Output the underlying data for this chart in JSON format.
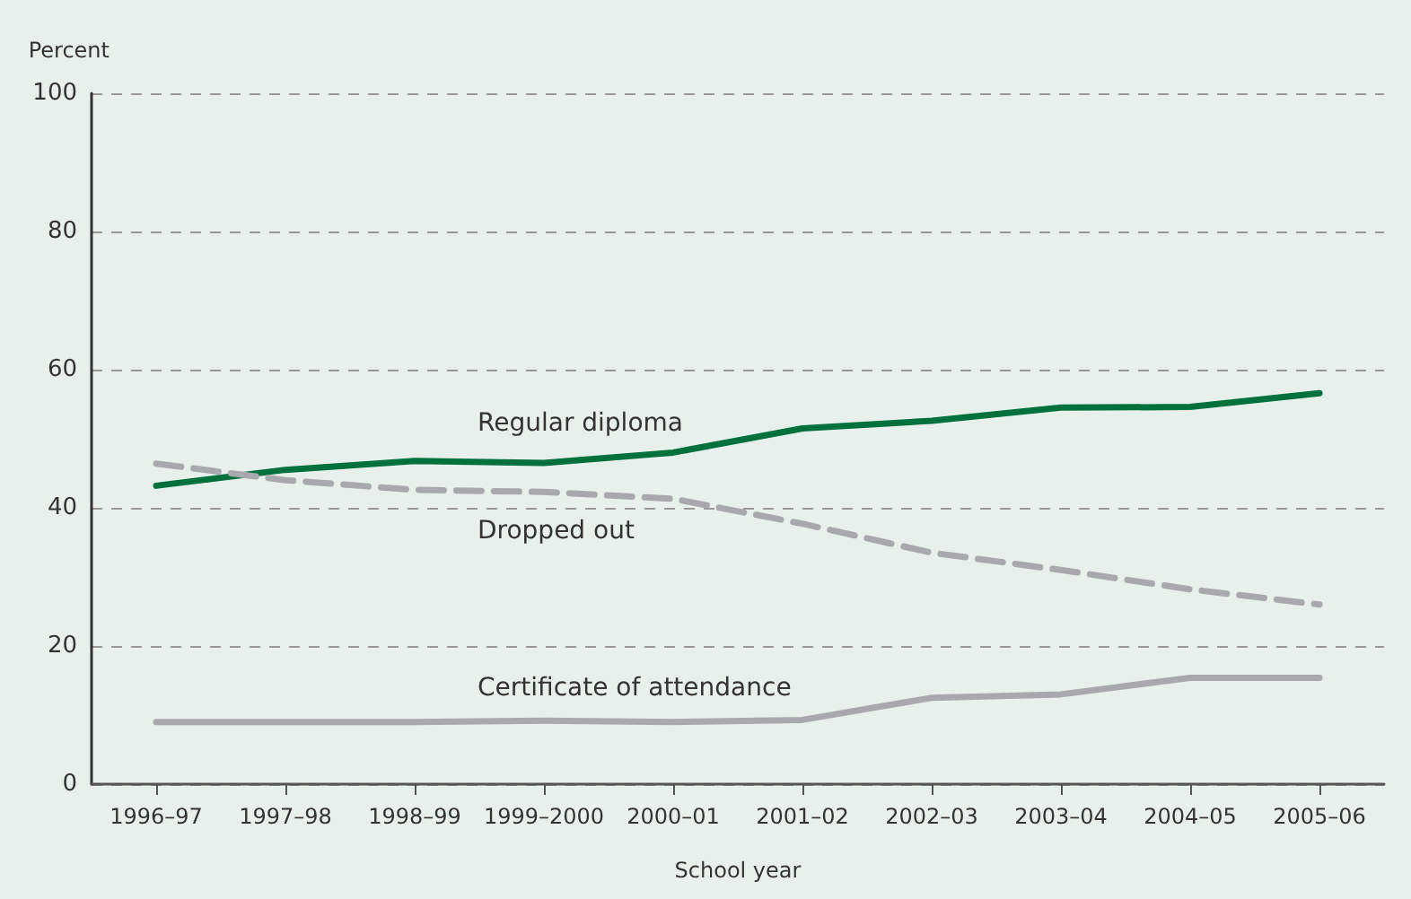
{
  "chart_data": {
    "type": "line",
    "ylabel": "Percent",
    "xlabel": "School year",
    "categories": [
      "1996–97",
      "1997–98",
      "1998–99",
      "1999–2000",
      "2000–01",
      "2001–02",
      "2002–03",
      "2003–04",
      "2004–05",
      "2005–06"
    ],
    "series": [
      {
        "name": "Regular diploma",
        "color": "#00703c",
        "line_style": "solid",
        "values": [
          43.2,
          45.5,
          46.8,
          46.5,
          48,
          51.5,
          52.6,
          54.5,
          54.6,
          56.6
        ]
      },
      {
        "name": "Dropped out",
        "color": "#a7a9ac",
        "line_style": "dashed",
        "values": [
          46.4,
          44,
          42.6,
          42.3,
          41.3,
          37.7,
          33.5,
          31,
          28.2,
          26
        ]
      },
      {
        "name": "Certificate of attendance",
        "color": "#a7a9ac",
        "line_style": "solid",
        "values": [
          9,
          9,
          9,
          9.2,
          9,
          9.3,
          12.5,
          13,
          15.4,
          15.4
        ]
      }
    ],
    "ylim": [
      0,
      100
    ],
    "yticks": [
      0,
      20,
      40,
      60,
      80,
      100
    ],
    "grid": "y",
    "legend": false,
    "marker": "none"
  }
}
